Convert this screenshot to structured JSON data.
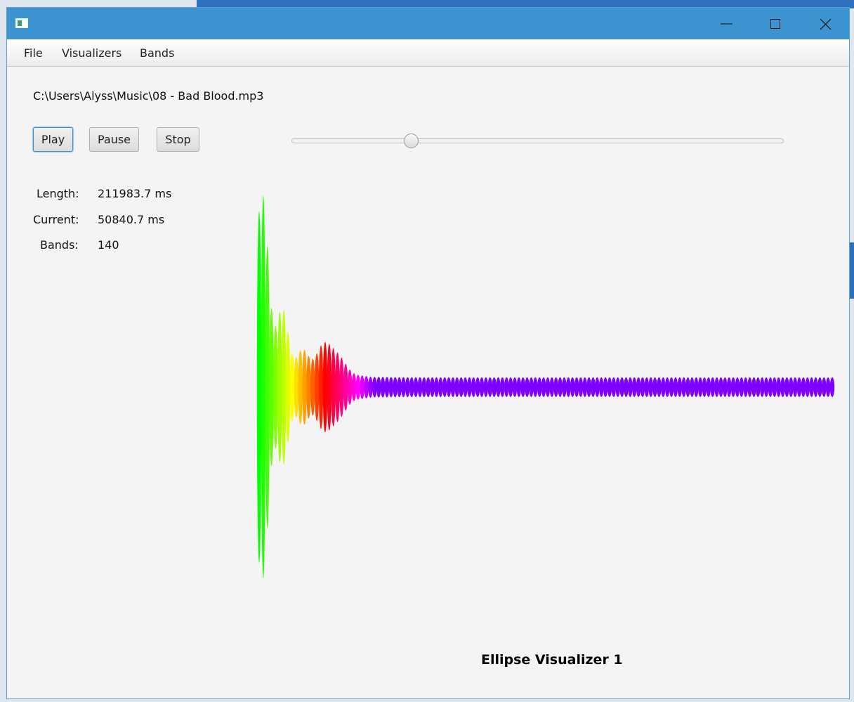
{
  "menu": [
    "File",
    "Visualizers",
    "Bands"
  ],
  "file_path": "C:\\Users\\Alyss\\Music\\08 - Bad Blood.mp3",
  "buttons": [
    "Play",
    "Pause",
    "Stop"
  ],
  "info": [
    {
      "label": "Length:",
      "value": "211983.7 ms"
    },
    {
      "label": "Current:",
      "value": "50840.7 ms"
    },
    {
      "label": "Bands:",
      "value": "140"
    }
  ],
  "visualizer": {
    "name": "Ellipse Visualizer 1"
  }
}
